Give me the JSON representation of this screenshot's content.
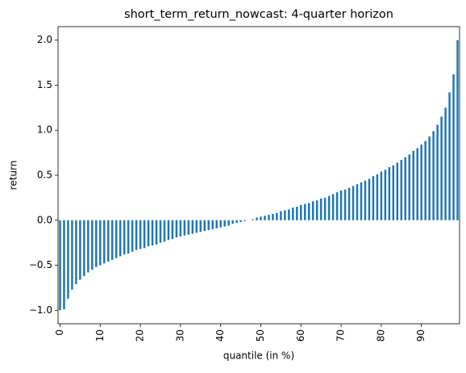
{
  "chart_data": {
    "type": "bar",
    "title": "short_term_return_nowcast: 4-quarter horizon",
    "xlabel": "quantile (in %)",
    "ylabel": "return",
    "categories": [
      0,
      null,
      null,
      null,
      null,
      null,
      null,
      null,
      null,
      null,
      10,
      null,
      null,
      null,
      null,
      null,
      null,
      null,
      null,
      null,
      20,
      null,
      null,
      null,
      null,
      null,
      null,
      null,
      null,
      null,
      30,
      null,
      null,
      null,
      null,
      null,
      null,
      null,
      null,
      null,
      40,
      null,
      null,
      null,
      null,
      null,
      null,
      null,
      null,
      null,
      50,
      null,
      null,
      null,
      null,
      null,
      null,
      null,
      null,
      null,
      60,
      null,
      null,
      null,
      null,
      null,
      null,
      null,
      null,
      null,
      70,
      null,
      null,
      null,
      null,
      null,
      null,
      null,
      null,
      null,
      80,
      null,
      null,
      null,
      null,
      null,
      null,
      null,
      null,
      null,
      90,
      null,
      null,
      null,
      null,
      null,
      null,
      null,
      null,
      null
    ],
    "values": [
      -1.0,
      -0.99,
      -0.87,
      -0.77,
      -0.71,
      -0.66,
      -0.62,
      -0.58,
      -0.55,
      -0.52,
      -0.5,
      -0.48,
      -0.46,
      -0.44,
      -0.42,
      -0.4,
      -0.38,
      -0.37,
      -0.35,
      -0.33,
      -0.32,
      -0.31,
      -0.29,
      -0.28,
      -0.27,
      -0.25,
      -0.24,
      -0.22,
      -0.21,
      -0.19,
      -0.18,
      -0.17,
      -0.16,
      -0.15,
      -0.14,
      -0.13,
      -0.12,
      -0.11,
      -0.1,
      -0.09,
      -0.08,
      -0.07,
      -0.06,
      -0.04,
      -0.03,
      -0.02,
      -0.01,
      0.0,
      0.01,
      0.03,
      0.04,
      0.05,
      0.06,
      0.07,
      0.08,
      0.1,
      0.11,
      0.12,
      0.14,
      0.15,
      0.17,
      0.18,
      0.19,
      0.21,
      0.22,
      0.24,
      0.25,
      0.27,
      0.29,
      0.31,
      0.33,
      0.34,
      0.36,
      0.38,
      0.4,
      0.42,
      0.44,
      0.46,
      0.49,
      0.51,
      0.54,
      0.56,
      0.59,
      0.61,
      0.64,
      0.67,
      0.7,
      0.73,
      0.77,
      0.8,
      0.84,
      0.88,
      0.93,
      0.99,
      1.06,
      1.15,
      1.25,
      1.42,
      1.62,
      2.0
    ],
    "color": "#1f77b4",
    "ylim": [
      -1.15,
      2.15
    ],
    "yticks": [
      {
        "value": -1.0,
        "label": "−1.0"
      },
      {
        "value": -0.5,
        "label": "−0.5"
      },
      {
        "value": 0.0,
        "label": "0.0"
      },
      {
        "value": 0.5,
        "label": "0.5"
      },
      {
        "value": 1.0,
        "label": "1.0"
      },
      {
        "value": 1.5,
        "label": "1.5"
      },
      {
        "value": 2.0,
        "label": "2.0"
      }
    ],
    "grid": false
  }
}
